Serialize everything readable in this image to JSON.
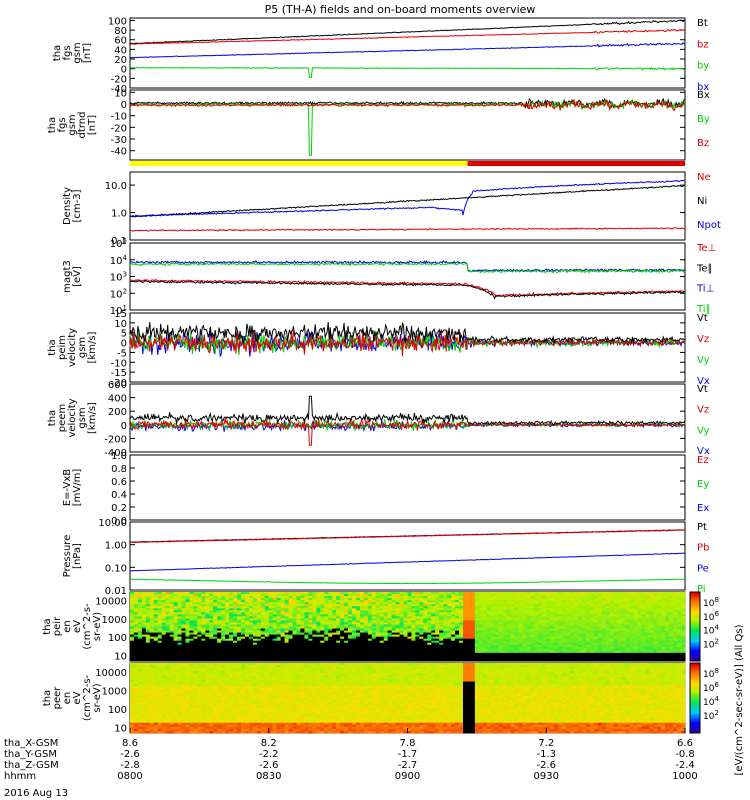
{
  "title": "P5 (TH-A) fields and on-board moments overview",
  "date_label": "2016 Aug 13",
  "ephemeris": [
    {
      "label": "tha_X-GSM",
      "values": [
        "8.6",
        "8.2",
        "7.8",
        "7.2",
        "6.6"
      ]
    },
    {
      "label": "tha_Y-GSM",
      "values": [
        "-2.6",
        "-2.2",
        "-1.7",
        "-1.3",
        "-0.8"
      ]
    },
    {
      "label": "tha_Z-GSM",
      "values": [
        "-2.8",
        "-2.6",
        "-2.7",
        "-2.6",
        "-2.4"
      ]
    },
    {
      "label": "hhmm",
      "values": [
        "0800",
        "0830",
        "0900",
        "0930",
        "1000"
      ]
    }
  ],
  "colors": {
    "black": "#000000",
    "red": "#e00000",
    "green": "#00d000",
    "blue": "#0000e0",
    "yellow": "#ffff00"
  },
  "mode_bar": {
    "yellow_until_minutes": 73
  },
  "spectro_colorbar": {
    "label": "[eV/(cm^2-sec-sr-eV)] (All Qs)",
    "ticks": [
      "10^8",
      "10^6",
      "10^4",
      "10^2"
    ]
  },
  "chart_data": [
    {
      "type": "line",
      "id": "fgs_gsm",
      "ylabel": [
        "tha",
        "fgs",
        "gsm",
        "[nT]"
      ],
      "ylim": [
        -40,
        105
      ],
      "yticks": [
        -40,
        -20,
        0,
        20,
        40,
        60,
        80,
        100
      ],
      "series": [
        {
          "name": "Bt",
          "color": "#000000",
          "start": 52,
          "end": 100
        },
        {
          "name": "bz",
          "color": "#e00000",
          "start": 51,
          "end": 80
        },
        {
          "name": "by",
          "color": "#00d000",
          "start": 2,
          "end": 0
        },
        {
          "name": "bx",
          "color": "#0000e0",
          "start": 23,
          "end": 52
        }
      ]
    },
    {
      "type": "line",
      "id": "fgs_gsm_dtrnd",
      "ylabel": [
        "tha",
        "fgs",
        "gsm",
        "dtrnd",
        "[nT]"
      ],
      "ylim": [
        -48,
        12
      ],
      "yticks": [
        -40,
        -30,
        -20,
        -10,
        0,
        10
      ],
      "series": [
        {
          "name": "Bx",
          "color": "#000000"
        },
        {
          "name": "By",
          "color": "#00d000"
        },
        {
          "name": "Bz",
          "color": "#e00000"
        }
      ]
    },
    {
      "type": "line",
      "id": "density",
      "scale": "log",
      "ylabel": [
        "Density",
        "[cm-3]"
      ],
      "ylim": [
        0.1,
        30
      ],
      "yticks": [
        "0.1",
        "1.0",
        "10.0"
      ],
      "series": [
        {
          "name": "Ne",
          "color": "#e00000"
        },
        {
          "name": "Ni",
          "color": "#000000"
        },
        {
          "name": "Npot",
          "color": "#0000e0"
        }
      ]
    },
    {
      "type": "line",
      "id": "temperature",
      "scale": "log",
      "ylabel": [
        "magt3",
        "[eV]"
      ],
      "ylim": [
        10,
        100000
      ],
      "yticks": [
        "10^1",
        "10^2",
        "10^3",
        "10^4",
        "10^5"
      ],
      "series": [
        {
          "name": "Te⊥",
          "color": "#e00000"
        },
        {
          "name": "Te∥",
          "color": "#000000"
        },
        {
          "name": "Ti⊥",
          "color": "#0000e0"
        },
        {
          "name": "Ti∥",
          "color": "#00d000"
        }
      ]
    },
    {
      "type": "line",
      "id": "peim_velocity",
      "ylabel": [
        "tha",
        "peim",
        "velocity",
        "gsm",
        "[km/s]"
      ],
      "ylim": [
        -20,
        15
      ],
      "yticks": [
        -20,
        -15,
        -10,
        -5,
        0,
        5,
        10,
        15
      ],
      "series": [
        {
          "name": "Vt",
          "color": "#000000"
        },
        {
          "name": "Vz",
          "color": "#e00000"
        },
        {
          "name": "Vy",
          "color": "#00d000"
        },
        {
          "name": "Vx",
          "color": "#0000e0"
        }
      ]
    },
    {
      "type": "line",
      "id": "peem_velocity",
      "ylabel": [
        "tha",
        "peem",
        "velocity",
        "gsm",
        "[km/s]"
      ],
      "ylim": [
        -400,
        600
      ],
      "yticks": [
        -400,
        -200,
        0,
        200,
        400,
        600
      ],
      "series": [
        {
          "name": "Vt",
          "color": "#000000"
        },
        {
          "name": "Vz",
          "color": "#e00000"
        },
        {
          "name": "Vy",
          "color": "#00d000"
        },
        {
          "name": "Vx",
          "color": "#0000e0"
        }
      ]
    },
    {
      "type": "line",
      "id": "efield",
      "ylabel": [
        "E=-VxB",
        "[mV/m]"
      ],
      "ylim": [
        0,
        1
      ],
      "yticks": [
        "0.0",
        "0.2",
        "0.4",
        "0.6",
        "0.8",
        "1.0"
      ],
      "series": [
        {
          "name": "Ez",
          "color": "#e00000"
        },
        {
          "name": "Ey",
          "color": "#00d000"
        },
        {
          "name": "Ex",
          "color": "#0000e0"
        }
      ]
    },
    {
      "type": "line",
      "id": "pressure",
      "scale": "log",
      "ylabel": [
        "Pressure",
        "[nPa]"
      ],
      "ylim": [
        0.01,
        10
      ],
      "yticks": [
        "0.01",
        "0.10",
        "1.00",
        "10.00"
      ],
      "series": [
        {
          "name": "Pt",
          "color": "#000000",
          "start": 1.3,
          "end": 4.5
        },
        {
          "name": "Pb",
          "color": "#e00000",
          "start": 1.25,
          "end": 4.4
        },
        {
          "name": "Pe",
          "color": "#0000e0",
          "start": 0.07,
          "end": 0.42
        },
        {
          "name": "Pi",
          "color": "#00d000",
          "start": 0.03,
          "end": 0.03
        }
      ]
    },
    {
      "type": "heatmap",
      "id": "peir_spectrogram",
      "scale": "log",
      "ylabel": [
        "tha",
        "peir",
        "en",
        "eV",
        "(cm^2-s-",
        "sr-eV)"
      ],
      "ylim": [
        5,
        30000
      ],
      "yticks": [
        "10",
        "100",
        "1000",
        "10000"
      ]
    },
    {
      "type": "heatmap",
      "id": "peer_spectrogram",
      "scale": "log",
      "ylabel": [
        "tha",
        "peer",
        "en",
        "eV",
        "(cm^2-s-",
        "sr-eV)"
      ],
      "ylim": [
        5,
        30000
      ],
      "yticks": [
        "10",
        "100",
        "1000",
        "10000"
      ]
    }
  ]
}
